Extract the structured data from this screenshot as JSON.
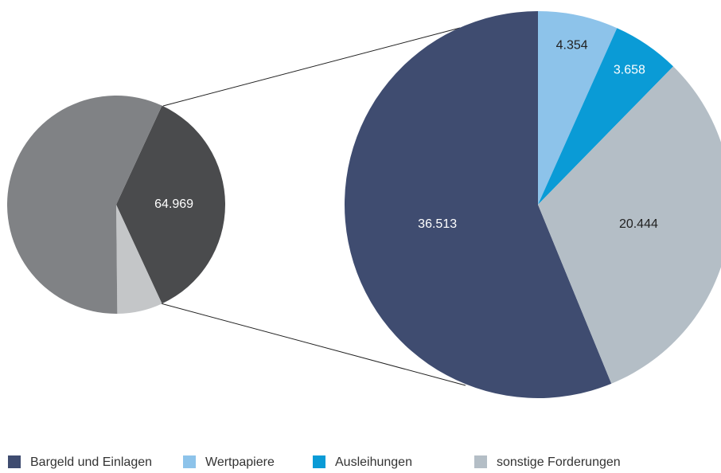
{
  "chart_data": [
    {
      "type": "pie",
      "values": [
        64.969,
        12.1,
        102.4
      ],
      "value_labels": [
        "64.969",
        null,
        null
      ],
      "colors": [
        "#4a4b4d",
        "#c4c6c8",
        "#808285"
      ]
    },
    {
      "type": "pie",
      "categories": [
        "Bargeld und Einlagen",
        "Wertpapiere",
        "Ausleihungen",
        "sonstige Forderungen"
      ],
      "values": [
        36.513,
        4.354,
        3.658,
        20.444
      ],
      "colors": [
        "#3f4c70",
        "#8dc3ea",
        "#0a9bd6",
        "#b4bec6"
      ],
      "legend": "bottom"
    }
  ]
}
